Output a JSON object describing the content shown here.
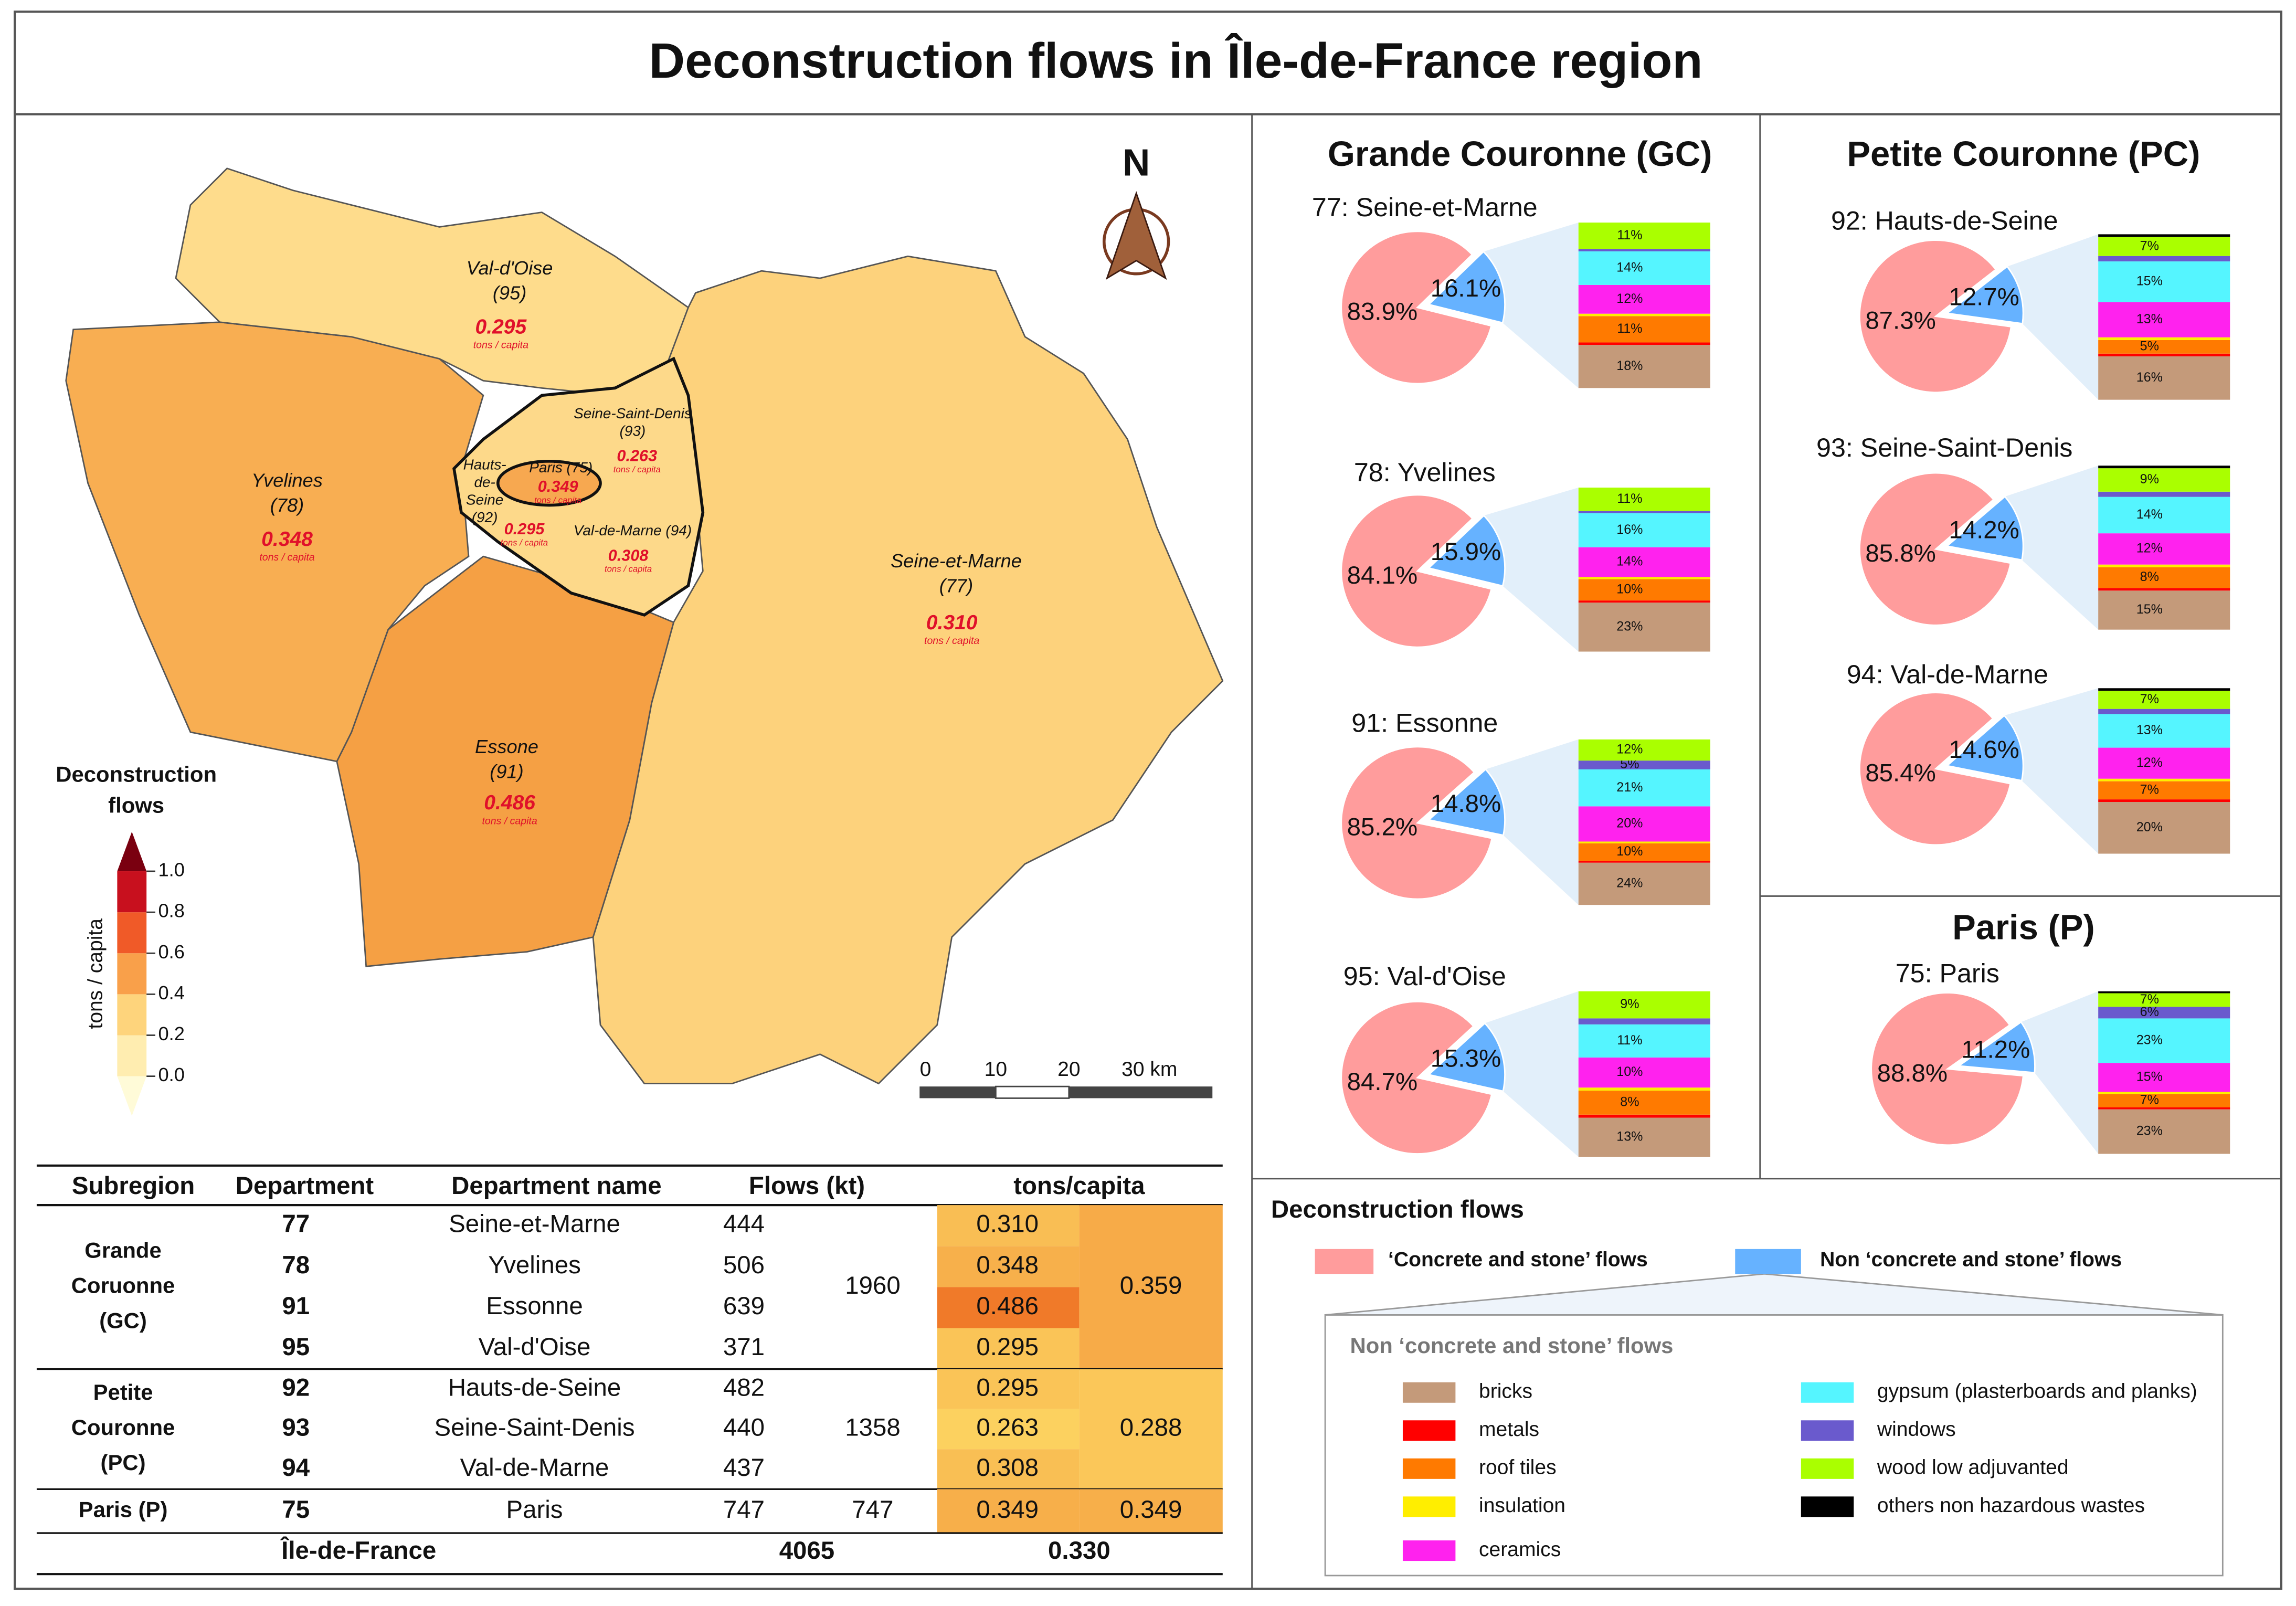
{
  "title": "Deconstruction flows in Île-de-France region",
  "map": {
    "unit": "tons / capita",
    "north": "N",
    "departments": [
      {
        "lines": [
          "Val-d'Oise",
          "(95)"
        ],
        "value": "0.295"
      },
      {
        "lines": [
          "Yvelines",
          "(78)"
        ],
        "value": "0.348"
      },
      {
        "lines": [
          "Essone",
          "(91)"
        ],
        "value": "0.486"
      },
      {
        "lines": [
          "Seine-et-Marne",
          "(77)"
        ],
        "value": "0.310"
      },
      {
        "lines": [
          "Seine-Saint-Denis",
          "(93)"
        ],
        "value": "0.263"
      },
      {
        "lines": [
          "Val-de-Marne (94)"
        ],
        "value": "0.308"
      },
      {
        "lines": [
          "Hauts-",
          "de-",
          "Seine",
          "(92)"
        ],
        "value": "0.295"
      },
      {
        "lines": [
          "Paris (75)"
        ],
        "value": "0.349"
      }
    ],
    "legend": {
      "title": [
        "Deconstruction",
        "flows"
      ],
      "axis_label": "tons / capita",
      "ticks": [
        {
          "value": 0,
          "label": "0.0"
        },
        {
          "value": 0.2,
          "label": "0.2"
        },
        {
          "value": 0.4,
          "label": "0.4"
        },
        {
          "value": 0.6,
          "label": "0.6"
        },
        {
          "value": 0.8,
          "label": "0.8"
        },
        {
          "value": 1,
          "label": "1.0"
        }
      ],
      "colors": [
        "#ffedb0",
        "#fed47c",
        "#f9a04a",
        "#f05a28",
        "#c8101e"
      ]
    },
    "scale_bar": [
      "0",
      "10",
      "20",
      "30 km"
    ]
  },
  "panels": [
    "Grande Couronne (GC)",
    "Petite Couronne (PC)",
    "Paris (P)"
  ],
  "chart_data": [
    {
      "type": "pie",
      "title": "77: Seine-et-Marne",
      "values": [
        83.9,
        16.1
      ],
      "value_labels": [
        "83.9%",
        "16.1%"
      ],
      "colors": [
        "#ff9c9c",
        "#66b2ff"
      ],
      "breakdown": {
        "values": [
          18,
          1,
          11,
          1,
          12,
          14,
          1,
          11,
          0
        ],
        "value_labels": [
          "18%",
          null,
          "11%",
          null,
          "12%",
          "14%",
          null,
          "11%",
          null
        ]
      }
    },
    {
      "type": "pie",
      "title": "78: Yvelines",
      "values": [
        84.1,
        15.9
      ],
      "value_labels": [
        "84.1%",
        "15.9%"
      ],
      "colors": [
        "#ff9c9c",
        "#66b2ff"
      ],
      "breakdown": {
        "values": [
          23,
          1,
          10,
          1,
          14,
          16,
          1,
          11,
          0
        ],
        "value_labels": [
          "23%",
          null,
          "10%",
          null,
          "14%",
          "16%",
          null,
          "11%",
          null
        ]
      }
    },
    {
      "type": "pie",
      "title": "91: Essonne",
      "values": [
        85.2,
        14.8
      ],
      "value_labels": [
        "85.2%",
        "14.8%"
      ],
      "colors": [
        "#ff9c9c",
        "#66b2ff"
      ],
      "breakdown": {
        "values": [
          24,
          1,
          10,
          1,
          20,
          21,
          5,
          12,
          0
        ],
        "value_labels": [
          "24%",
          null,
          "10%",
          null,
          "20%",
          "21%",
          "5%",
          "12%",
          null
        ]
      }
    },
    {
      "type": "pie",
      "title": "95: Val-d'Oise",
      "values": [
        84.7,
        15.3
      ],
      "value_labels": [
        "84.7%",
        "15.3%"
      ],
      "colors": [
        "#ff9c9c",
        "#66b2ff"
      ],
      "breakdown": {
        "values": [
          13,
          1,
          8,
          1,
          10,
          11,
          2,
          9,
          0
        ],
        "value_labels": [
          "13%",
          null,
          "8%",
          null,
          "10%",
          "11%",
          null,
          "9%",
          null
        ]
      }
    },
    {
      "type": "pie",
      "title": "92: Hauts-de-Seine",
      "values": [
        87.3,
        12.7
      ],
      "value_labels": [
        "87.3%",
        "12.7%"
      ],
      "colors": [
        "#ff9c9c",
        "#66b2ff"
      ],
      "breakdown": {
        "values": [
          16,
          1,
          5,
          1,
          13,
          15,
          2,
          7,
          1
        ],
        "value_labels": [
          "16%",
          null,
          "5%",
          null,
          "13%",
          "15%",
          null,
          "7%",
          null
        ]
      }
    },
    {
      "type": "pie",
      "title": "93: Seine-Saint-Denis",
      "values": [
        85.8,
        14.2
      ],
      "value_labels": [
        "85.8%",
        "14.2%"
      ],
      "colors": [
        "#ff9c9c",
        "#66b2ff"
      ],
      "breakdown": {
        "values": [
          15,
          1,
          8,
          1,
          12,
          14,
          2,
          9,
          1
        ],
        "value_labels": [
          "15%",
          null,
          "8%",
          null,
          "12%",
          "14%",
          null,
          "9%",
          null
        ]
      }
    },
    {
      "type": "pie",
      "title": "94: Val-de-Marne",
      "values": [
        85.4,
        14.6
      ],
      "value_labels": [
        "85.4%",
        "14.6%"
      ],
      "colors": [
        "#ff9c9c",
        "#66b2ff"
      ],
      "breakdown": {
        "values": [
          20,
          1,
          7,
          1,
          12,
          13,
          2,
          7,
          1
        ],
        "value_labels": [
          "20%",
          null,
          "7%",
          null,
          "12%",
          "13%",
          null,
          "7%",
          null
        ]
      }
    },
    {
      "type": "pie",
      "title": "75: Paris",
      "values": [
        88.8,
        11.2
      ],
      "value_labels": [
        "88.8%",
        "11.2%"
      ],
      "colors": [
        "#ff9c9c",
        "#66b2ff"
      ],
      "breakdown": {
        "values": [
          23,
          1,
          7,
          1,
          15,
          23,
          6,
          7,
          1
        ],
        "value_labels": [
          "23%",
          null,
          "7%",
          null,
          "15%",
          "23%",
          "6%",
          "7%",
          null
        ]
      }
    }
  ],
  "legend": {
    "title": "Deconstruction flows",
    "main": [
      "‘Concrete and stone’ flows",
      "Non ‘concrete and stone’ flows"
    ],
    "sub_title": "Non ‘concrete and stone’ flows",
    "items": [
      {
        "name": "bricks",
        "color": "#c49a7a"
      },
      {
        "name": "metals",
        "color": "#ff0000"
      },
      {
        "name": "roof tiles",
        "color": "#ff7a00"
      },
      {
        "name": "insulation",
        "color": "#ffee00"
      },
      {
        "name": "ceramics",
        "color": "#ff22ee"
      },
      {
        "name": "gypsum (plasterboards and planks)",
        "color": "#55f5ff"
      },
      {
        "name": "windows",
        "color": "#6a5acd"
      },
      {
        "name": "wood low adjuvanted",
        "color": "#aaff00"
      },
      {
        "name": "others non hazardous wastes",
        "color": "#000000"
      }
    ]
  },
  "table": {
    "header": [
      "Subregion",
      "Department",
      "Department name",
      "Flows (kt)",
      "tons/capita"
    ],
    "groups": [
      {
        "label": [
          "Grande",
          "Coruonne",
          "(GC)"
        ],
        "rows": [
          [
            "77",
            "Seine-et-Marne",
            "444",
            "0.310"
          ],
          [
            "78",
            "Yvelines",
            "506",
            "0.348"
          ],
          [
            "91",
            "Essonne",
            "639",
            "0.486"
          ],
          [
            "95",
            "Val-d'Oise",
            "371",
            "0.295"
          ]
        ],
        "flows": "1960",
        "tons": "0.359"
      },
      {
        "label": [
          "Petite",
          "Couronne",
          "(PC)"
        ],
        "rows": [
          [
            "92",
            "Hauts-de-Seine",
            "482",
            "0.295"
          ],
          [
            "93",
            "Seine-Saint-Denis",
            "440",
            "0.263"
          ],
          [
            "94",
            "Val-de-Marne",
            "437",
            "0.308"
          ]
        ],
        "flows": "1358",
        "tons": "0.288"
      },
      {
        "label": [
          "Paris (P)"
        ],
        "rows": [
          [
            "75",
            "Paris",
            "747",
            "0.349"
          ]
        ],
        "flows": "747",
        "tons": "0.349"
      }
    ],
    "total": [
      "Île-de-France",
      "4065",
      "0.330"
    ]
  }
}
